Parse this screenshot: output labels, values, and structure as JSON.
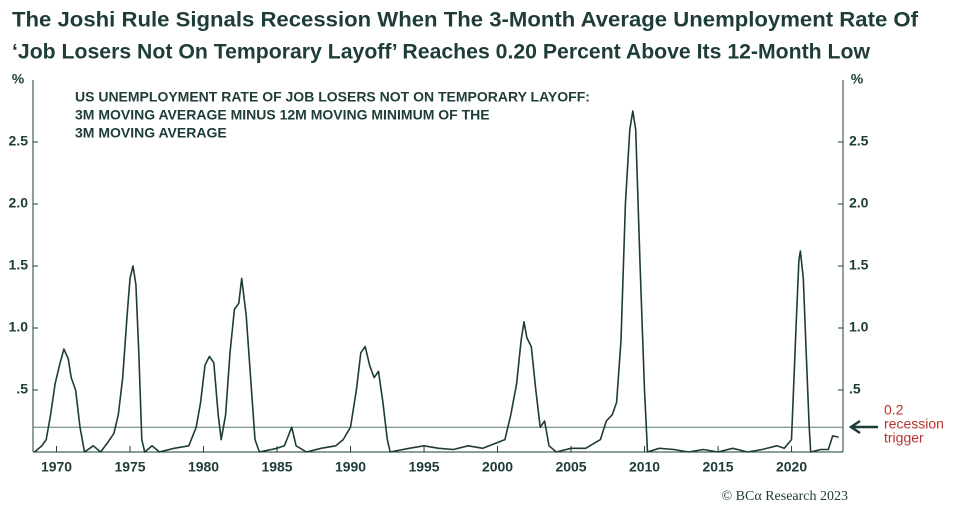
{
  "chart_data": {
    "type": "line",
    "title": [
      "The Joshi Rule Signals Recession When The 3-Month Average Unemployment Rate Of",
      "‘Job Losers Not On Temporary Layoff’ Reaches 0.20 Percent Above Its 12-Month Low"
    ],
    "subtitle": [
      "US UNEMPLOYMENT RATE OF JOB LOSERS NOT ON TEMPORARY LAYOFF:",
      "3M MOVING AVERAGE MINUS 12M MOVING MINIMUM OF THE",
      "3M MOVING AVERAGE"
    ],
    "y_unit": "%",
    "y2_unit": "%",
    "source": "© BCα Research 2023",
    "color": "#1e3c38",
    "xlim": [
      1968.4,
      2023.5
    ],
    "xticks": [
      1970,
      1975,
      1980,
      1985,
      1990,
      1995,
      2000,
      2005,
      2010,
      2015,
      2020
    ],
    "ylim": [
      0,
      3
    ],
    "yticks": [
      {
        "value": 0.5,
        "label": ".5"
      },
      {
        "value": 1,
        "label": "1.0"
      },
      1.5,
      {
        "value": 2,
        "label": "2.0"
      },
      2.5
    ],
    "reference_line": {
      "value": 0.2,
      "label": "0.2",
      "text": [
        "recession",
        "trigger"
      ],
      "color": "#b8322e"
    },
    "x": [
      1968.5,
      1969.0,
      1969.3,
      1969.6,
      1969.9,
      1970.2,
      1970.5,
      1970.8,
      1971.0,
      1971.3,
      1971.6,
      1971.9,
      1972.5,
      1973.0,
      1973.5,
      1973.9,
      1974.2,
      1974.5,
      1974.8,
      1975.0,
      1975.2,
      1975.4,
      1975.6,
      1975.8,
      1976.0,
      1976.5,
      1977.0,
      1978.0,
      1979.0,
      1979.5,
      1979.8,
      1980.1,
      1980.4,
      1980.7,
      1981.0,
      1981.2,
      1981.5,
      1981.8,
      1982.1,
      1982.4,
      1982.6,
      1982.9,
      1983.2,
      1983.5,
      1983.8,
      1985.0,
      1985.5,
      1986.0,
      1986.3,
      1987.0,
      1988.0,
      1989.0,
      1989.5,
      1990.0,
      1990.4,
      1990.7,
      1991.0,
      1991.3,
      1991.6,
      1991.9,
      1992.2,
      1992.5,
      1992.7,
      1994.0,
      1995.0,
      1996.0,
      1997.0,
      1998.0,
      1999.0,
      2000.5,
      2000.9,
      2001.3,
      2001.6,
      2001.8,
      2002.0,
      2002.3,
      2002.6,
      2002.9,
      2003.2,
      2003.5,
      2004.0,
      2005.0,
      2006.0,
      2007.0,
      2007.4,
      2007.8,
      2008.1,
      2008.4,
      2008.7,
      2009.0,
      2009.2,
      2009.4,
      2009.7,
      2010.0,
      2010.2,
      2011.0,
      2012.0,
      2013.0,
      2014.0,
      2015.0,
      2016.0,
      2017.0,
      2018.0,
      2019.0,
      2019.5,
      2020.0,
      2020.3,
      2020.5,
      2020.6,
      2020.8,
      2021.0,
      2021.2,
      2021.3,
      2022.0,
      2022.5,
      2022.8,
      2023.2
    ],
    "values": [
      0,
      0.05,
      0.1,
      0.3,
      0.55,
      0.7,
      0.83,
      0.75,
      0.6,
      0.5,
      0.2,
      0,
      0.05,
      0,
      0.08,
      0.15,
      0.3,
      0.6,
      1.1,
      1.4,
      1.5,
      1.35,
      0.8,
      0.1,
      0,
      0.05,
      0,
      0.03,
      0.05,
      0.2,
      0.4,
      0.7,
      0.77,
      0.72,
      0.3,
      0.1,
      0.3,
      0.8,
      1.15,
      1.2,
      1.4,
      1.1,
      0.6,
      0.1,
      0,
      0.03,
      0.05,
      0.2,
      0.05,
      0,
      0.03,
      0.05,
      0.1,
      0.2,
      0.5,
      0.8,
      0.85,
      0.7,
      0.6,
      0.65,
      0.4,
      0.1,
      0,
      0.03,
      0.05,
      0.03,
      0.02,
      0.05,
      0.03,
      0.1,
      0.3,
      0.55,
      0.9,
      1.05,
      0.92,
      0.85,
      0.5,
      0.2,
      0.25,
      0.05,
      0,
      0.03,
      0.03,
      0.1,
      0.25,
      0.3,
      0.4,
      0.9,
      2.0,
      2.6,
      2.75,
      2.6,
      1.5,
      0.5,
      0,
      0.03,
      0.02,
      0,
      0.02,
      0,
      0.03,
      0,
      0.02,
      0.05,
      0.03,
      0.1,
      1.0,
      1.55,
      1.62,
      1.4,
      0.8,
      0.2,
      0,
      0.02,
      0.02,
      0.13,
      0.12
    ]
  }
}
